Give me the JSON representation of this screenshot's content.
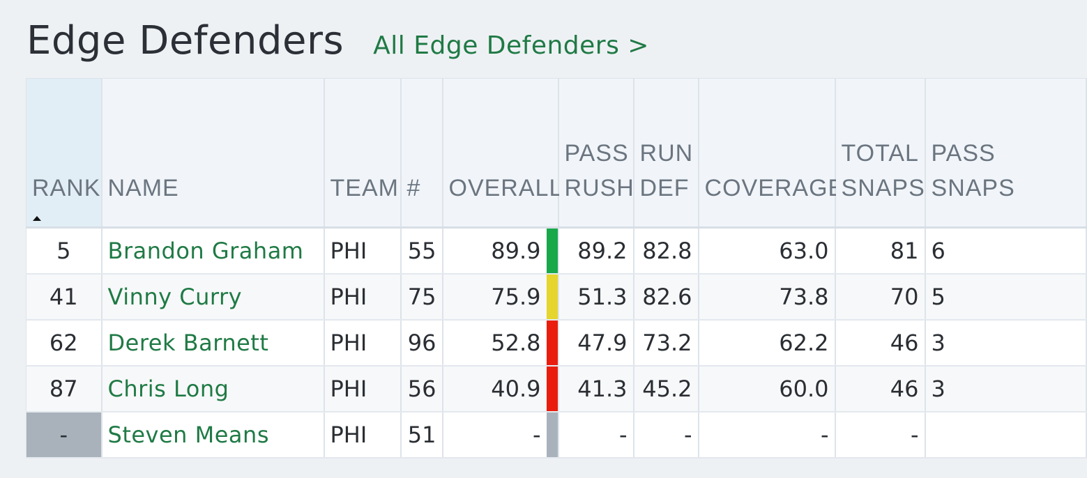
{
  "header": {
    "title": "Edge Defenders",
    "all_link": "All Edge Defenders >"
  },
  "columns": {
    "rank": "RANK",
    "name": "NAME",
    "team": "TEAM",
    "number": "#",
    "overall": "OVERALL",
    "pass_rush_1": "PASS",
    "pass_rush_2": "RUSH",
    "run_def_1": "RUN",
    "run_def_2": "DEF",
    "coverage": "COVERAGE",
    "total_snaps_1": "TOTAL",
    "total_snaps_2": "SNAPS",
    "pass_snaps_1": "PASS",
    "pass_snaps_2": "SNAPS"
  },
  "grade_colors": {
    "green": "#17a84a",
    "yellow": "#e6d52c",
    "red": "#ea1c0d",
    "none": "#a9b2bb"
  },
  "rows": [
    {
      "rank": "5",
      "name": "Brandon Graham",
      "team": "PHI",
      "number": "55",
      "overall": "89.9",
      "grade": "green",
      "pass_rush": "89.2",
      "run_def": "82.8",
      "coverage": "63.0",
      "total_snaps": "81",
      "pass_snaps": "6"
    },
    {
      "rank": "41",
      "name": "Vinny Curry",
      "team": "PHI",
      "number": "75",
      "overall": "75.9",
      "grade": "yellow",
      "pass_rush": "51.3",
      "run_def": "82.6",
      "coverage": "73.8",
      "total_snaps": "70",
      "pass_snaps": "5"
    },
    {
      "rank": "62",
      "name": "Derek Barnett",
      "team": "PHI",
      "number": "96",
      "overall": "52.8",
      "grade": "red",
      "pass_rush": "47.9",
      "run_def": "73.2",
      "coverage": "62.2",
      "total_snaps": "46",
      "pass_snaps": "3"
    },
    {
      "rank": "87",
      "name": "Chris Long",
      "team": "PHI",
      "number": "56",
      "overall": "40.9",
      "grade": "red",
      "pass_rush": "41.3",
      "run_def": "45.2",
      "coverage": "60.0",
      "total_snaps": "46",
      "pass_snaps": "3"
    },
    {
      "rank": "-",
      "name": "Steven Means",
      "team": "PHI",
      "number": "51",
      "overall": "-",
      "grade": "none",
      "pass_rush": "-",
      "run_def": "-",
      "coverage": "-",
      "total_snaps": "-",
      "pass_snaps": ""
    }
  ]
}
